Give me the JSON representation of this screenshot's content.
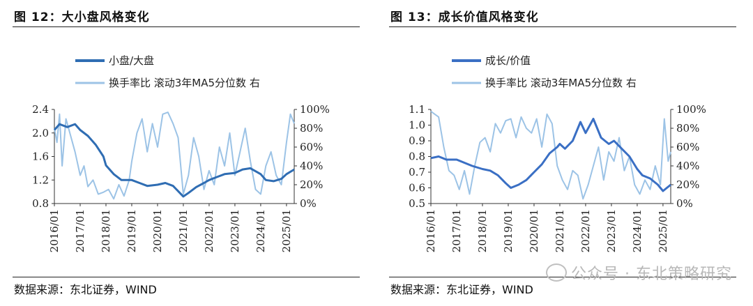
{
  "panels": [
    {
      "title": "图 12：大小盘风格变化",
      "source": "数据来源：东北证券，WIND",
      "chart_data": {
        "type": "line",
        "legend": [
          "小盘/大盘",
          "换手率比 滚动3年MA5分位数 右"
        ],
        "series_colors": [
          "#2f6db3",
          "#9cc3e6"
        ],
        "y_left": {
          "min": 0.8,
          "max": 2.4,
          "ticks": [
            "0.8",
            "1.2",
            "1.6",
            "2.0",
            "2.4"
          ],
          "tick_values": [
            0.8,
            1.2,
            1.6,
            2.0,
            2.4
          ]
        },
        "y_right": {
          "min": 0,
          "max": 100,
          "ticks": [
            "0%",
            "20%",
            "40%",
            "60%",
            "80%",
            "100%"
          ],
          "tick_values": [
            0,
            20,
            40,
            60,
            80,
            100
          ]
        },
        "x_ticks": [
          "2016/01",
          "2017/01",
          "2018/01",
          "2019/01",
          "2020/01",
          "2021/01",
          "2022/01",
          "2023/01",
          "2024/01",
          "2025/01"
        ],
        "x_range": [
          2016.0,
          2025.3
        ],
        "series": [
          {
            "name": "小盘/大盘",
            "x": [
              2016.0,
              2016.2,
              2016.5,
              2016.8,
              2017.0,
              2017.3,
              2017.6,
              2017.9,
              2018.0,
              2018.3,
              2018.6,
              2019.0,
              2019.3,
              2019.6,
              2020.0,
              2020.3,
              2020.6,
              2021.0,
              2021.2,
              2021.5,
              2021.8,
              2022.0,
              2022.3,
              2022.6,
              2023.0,
              2023.3,
              2023.6,
              2024.0,
              2024.2,
              2024.5,
              2024.8,
              2025.0,
              2025.3
            ],
            "values": [
              2.05,
              2.15,
              2.1,
              2.15,
              2.05,
              1.95,
              1.8,
              1.6,
              1.45,
              1.3,
              1.2,
              1.2,
              1.15,
              1.1,
              1.12,
              1.15,
              1.1,
              0.92,
              0.98,
              1.08,
              1.15,
              1.2,
              1.25,
              1.3,
              1.32,
              1.38,
              1.4,
              1.3,
              1.2,
              1.18,
              1.22,
              1.3,
              1.38
            ]
          },
          {
            "name": "换手率比 滚动3年MA5分位数 右",
            "x": [
              2016.0,
              2016.1,
              2016.2,
              2016.3,
              2016.45,
              2016.6,
              2016.8,
              2017.0,
              2017.15,
              2017.3,
              2017.5,
              2017.7,
              2017.9,
              2018.1,
              2018.3,
              2018.5,
              2018.7,
              2018.9,
              2019.0,
              2019.2,
              2019.4,
              2019.6,
              2019.8,
              2020.0,
              2020.2,
              2020.4,
              2020.6,
              2020.8,
              2021.0,
              2021.2,
              2021.4,
              2021.6,
              2021.8,
              2022.0,
              2022.2,
              2022.4,
              2022.6,
              2022.8,
              2023.0,
              2023.2,
              2023.4,
              2023.6,
              2023.8,
              2024.0,
              2024.2,
              2024.4,
              2024.6,
              2024.8,
              2025.0,
              2025.15,
              2025.3
            ],
            "values": [
              80,
              65,
              95,
              40,
              90,
              75,
              55,
              30,
              40,
              18,
              25,
              10,
              12,
              15,
              5,
              20,
              8,
              25,
              45,
              75,
              90,
              55,
              85,
              60,
              95,
              97,
              85,
              70,
              10,
              30,
              70,
              50,
              15,
              35,
              20,
              60,
              40,
              75,
              30,
              55,
              80,
              45,
              15,
              10,
              40,
              55,
              30,
              20,
              65,
              95,
              85
            ]
          }
        ]
      }
    },
    {
      "title": "图 13：成长价值风格变化",
      "source": "数据来源：东北证券，WIND",
      "chart_data": {
        "type": "line",
        "legend": [
          "成长/价值",
          "换手率比 滚动3年MA5分位数 右"
        ],
        "series_colors": [
          "#3a6fc4",
          "#9cc3e6"
        ],
        "y_left": {
          "min": 0.5,
          "max": 1.1,
          "ticks": [
            "0.5",
            "0.6",
            "0.7",
            "0.8",
            "0.9",
            "1.0",
            "1.1"
          ],
          "tick_values": [
            0.5,
            0.6,
            0.7,
            0.8,
            0.9,
            1.0,
            1.1
          ]
        },
        "y_right": {
          "min": 0,
          "max": 100,
          "ticks": [
            "0%",
            "20%",
            "40%",
            "60%",
            "80%",
            "100%"
          ],
          "tick_values": [
            0,
            20,
            40,
            60,
            80,
            100
          ]
        },
        "x_ticks": [
          "2016/01",
          "2017/01",
          "2018/01",
          "2019/01",
          "2020/01",
          "2021/01",
          "2022/01",
          "2023/01",
          "2024/01",
          "2025/01"
        ],
        "x_range": [
          2016.0,
          2025.3
        ],
        "series": [
          {
            "name": "成长/价值",
            "x": [
              2016.0,
              2016.3,
              2016.6,
              2017.0,
              2017.3,
              2017.6,
              2018.0,
              2018.3,
              2018.6,
              2018.9,
              2019.1,
              2019.4,
              2019.7,
              2020.0,
              2020.3,
              2020.6,
              2020.9,
              2021.0,
              2021.2,
              2021.5,
              2021.8,
              2022.0,
              2022.3,
              2022.6,
              2022.9,
              2023.1,
              2023.4,
              2023.7,
              2024.0,
              2024.2,
              2024.5,
              2024.8,
              2025.0,
              2025.3
            ],
            "values": [
              0.79,
              0.8,
              0.78,
              0.78,
              0.76,
              0.74,
              0.72,
              0.71,
              0.68,
              0.63,
              0.6,
              0.62,
              0.65,
              0.7,
              0.75,
              0.82,
              0.86,
              0.88,
              0.85,
              0.9,
              1.02,
              0.95,
              1.04,
              0.92,
              0.88,
              0.9,
              0.85,
              0.8,
              0.72,
              0.68,
              0.66,
              0.62,
              0.58,
              0.62
            ]
          },
          {
            "name": "换手率比 滚动3年MA5分位数 右",
            "x": [
              2016.0,
              2016.15,
              2016.3,
              2016.5,
              2016.7,
              2016.9,
              2017.1,
              2017.3,
              2017.5,
              2017.7,
              2017.9,
              2018.1,
              2018.3,
              2018.5,
              2018.7,
              2018.9,
              2019.1,
              2019.3,
              2019.5,
              2019.7,
              2019.9,
              2020.1,
              2020.3,
              2020.5,
              2020.7,
              2020.9,
              2021.1,
              2021.3,
              2021.5,
              2021.7,
              2021.9,
              2022.1,
              2022.3,
              2022.5,
              2022.7,
              2022.9,
              2023.1,
              2023.3,
              2023.5,
              2023.7,
              2023.9,
              2024.1,
              2024.3,
              2024.5,
              2024.7,
              2024.9,
              2025.05,
              2025.2,
              2025.3
            ],
            "values": [
              98,
              95,
              92,
              60,
              35,
              30,
              15,
              35,
              10,
              40,
              65,
              70,
              55,
              85,
              75,
              88,
              90,
              70,
              92,
              80,
              75,
              90,
              60,
              95,
              85,
              40,
              25,
              15,
              35,
              30,
              5,
              20,
              40,
              60,
              25,
              55,
              45,
              70,
              35,
              50,
              20,
              10,
              25,
              15,
              40,
              20,
              90,
              45,
              55
            ]
          }
        ]
      }
    }
  ],
  "watermark": "公众号 · 东北策略研究"
}
